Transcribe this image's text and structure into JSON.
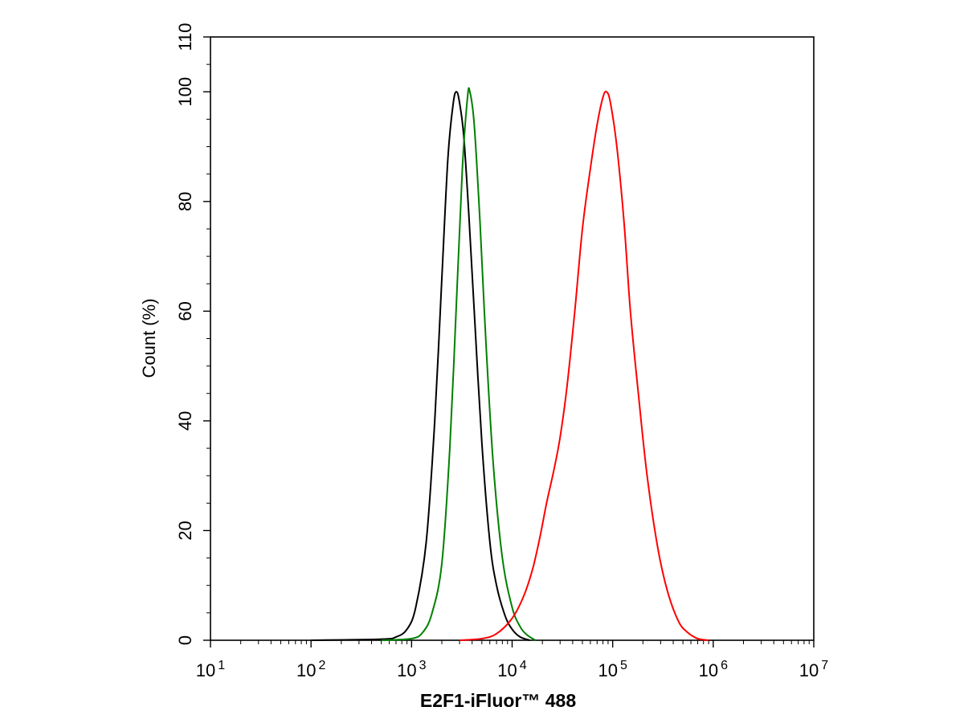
{
  "chart_data": {
    "type": "line",
    "xlabel": "E2F1-iFluor™ 488",
    "ylabel": "Count  (%)",
    "x_scale": "log",
    "xlim": [
      10,
      10000000
    ],
    "ylim": [
      0,
      110
    ],
    "x_ticks": [
      {
        "base": "10",
        "exp": "1"
      },
      {
        "base": "10",
        "exp": "2"
      },
      {
        "base": "10",
        "exp": "3"
      },
      {
        "base": "10",
        "exp": "4"
      },
      {
        "base": "10",
        "exp": "5"
      },
      {
        "base": "10",
        "exp": "6"
      },
      {
        "base": "10",
        "exp": "7"
      }
    ],
    "y_ticks": [
      "0",
      "20",
      "40",
      "60",
      "80",
      "100",
      "110"
    ],
    "grid": false,
    "series": [
      {
        "color": "#000000",
        "x": [
          100,
          500,
          700,
          900,
          1100,
          1400,
          1700,
          2000,
          2300,
          2600,
          2800,
          3000,
          3300,
          3700,
          4200,
          5000,
          6000,
          7000,
          8500,
          10000,
          12000,
          15000
        ],
        "y": [
          0,
          0.2,
          0.6,
          2,
          6,
          18,
          40,
          66,
          88,
          98,
          100,
          98,
          92,
          78,
          60,
          36,
          18,
          10,
          4.5,
          2,
          0.6,
          0
        ]
      },
      {
        "color": "#008000",
        "x": [
          500,
          1000,
          1300,
          1600,
          2000,
          2400,
          2800,
          3200,
          3600,
          3800,
          4200,
          4800,
          5500,
          6500,
          8000,
          10000,
          12000,
          14000,
          17000
        ],
        "y": [
          0,
          0.3,
          1.5,
          5,
          14,
          35,
          62,
          86,
          99,
          100,
          94,
          76,
          54,
          32,
          15,
          6,
          2.5,
          1,
          0
        ]
      },
      {
        "color": "#ff0000",
        "x": [
          3000,
          5000,
          7000,
          10000,
          13000,
          16000,
          19000,
          22000,
          26000,
          30000,
          35000,
          42000,
          50000,
          60000,
          70000,
          80000,
          87000,
          95000,
          110000,
          130000,
          150000,
          180000,
          220000,
          280000,
          350000,
          450000,
          550000,
          700000,
          900000
        ],
        "y": [
          0,
          0.3,
          1.2,
          4,
          8,
          13,
          19,
          25,
          31,
          37,
          46,
          60,
          75,
          86,
          94,
          99,
          100,
          98,
          90,
          76,
          60,
          45,
          30,
          17,
          9,
          3.5,
          1.5,
          0.3,
          0
        ]
      }
    ]
  }
}
